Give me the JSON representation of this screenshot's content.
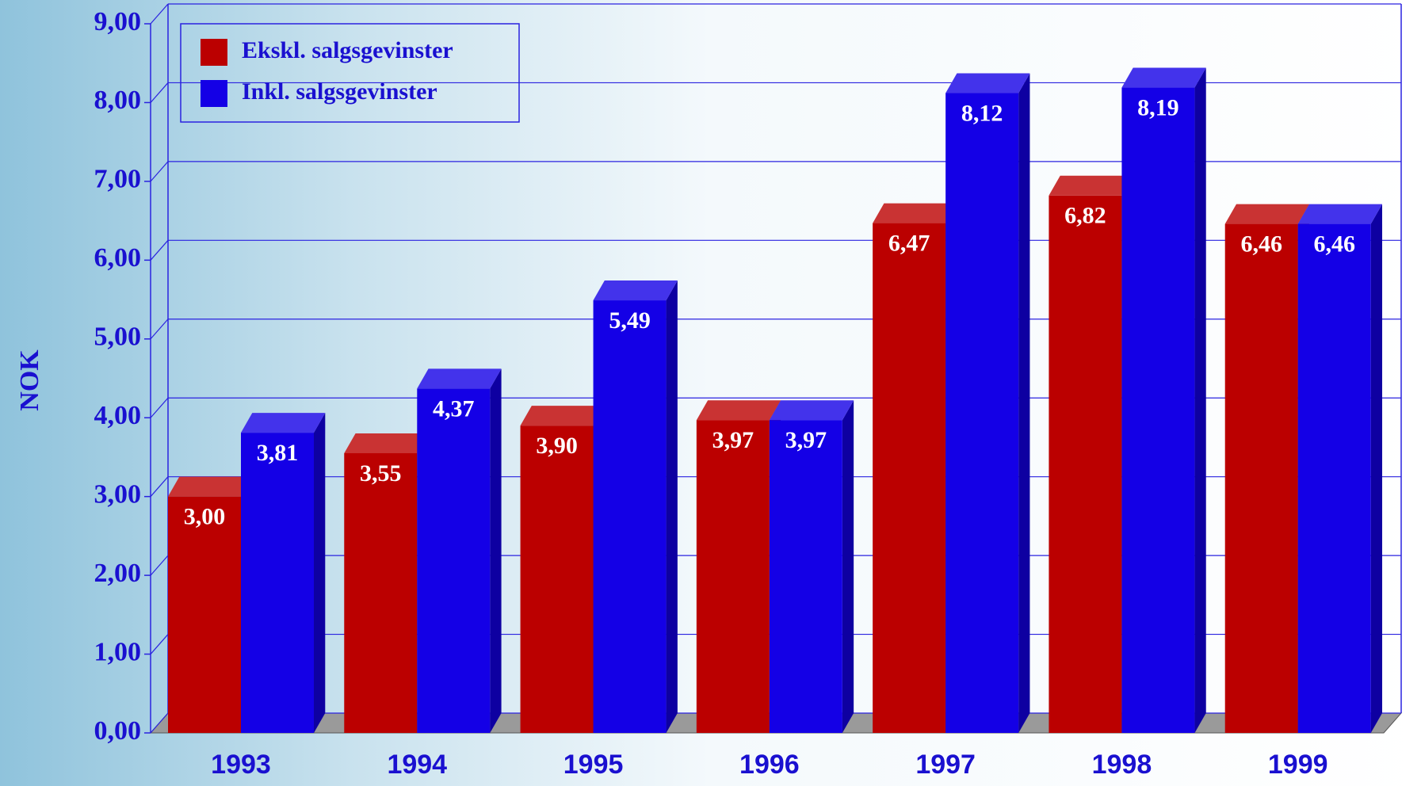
{
  "chart_data": {
    "type": "bar3d",
    "ylabel": "NOK",
    "categories": [
      "1993",
      "1994",
      "1995",
      "1996",
      "1997",
      "1998",
      "1999"
    ],
    "series": [
      {
        "name": "Ekskl. salgsgevinster",
        "color": "#bb0000",
        "values": [
          3.0,
          3.55,
          3.9,
          3.97,
          6.47,
          6.82,
          6.46
        ],
        "value_labels": [
          "3,00",
          "3,55",
          "3,90",
          "3,97",
          "6,47",
          "6,82",
          "6,46"
        ]
      },
      {
        "name": "Inkl. salgsgevinster",
        "color": "#1400e6",
        "values": [
          3.81,
          4.37,
          5.49,
          3.97,
          8.12,
          8.19,
          6.46
        ],
        "value_labels": [
          "3,81",
          "4,37",
          "5,49",
          "3,97",
          "8,12",
          "8,19",
          "6,46"
        ]
      }
    ],
    "ylim": [
      0,
      9
    ],
    "yticks": [
      {
        "value": 0,
        "label": "0,00"
      },
      {
        "value": 1,
        "label": "1,00"
      },
      {
        "value": 2,
        "label": "2,00"
      },
      {
        "value": 3,
        "label": "3,00"
      },
      {
        "value": 4,
        "label": "4,00"
      },
      {
        "value": 5,
        "label": "5,00"
      },
      {
        "value": 6,
        "label": "6,00"
      },
      {
        "value": 7,
        "label": "7,00"
      },
      {
        "value": 8,
        "label": "8,00"
      },
      {
        "value": 9,
        "label": "9,00"
      }
    ],
    "grid": true,
    "legend": "top-left"
  }
}
